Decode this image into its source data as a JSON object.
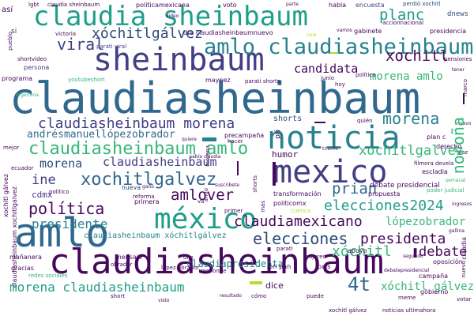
{
  "cloud": {
    "big": {
      "claudiasheinbaum": "claudiasheinbaum",
      "claudia_sheinbaum_top": "claudia sheinbaum",
      "sheinbaum": "sheinbaum",
      "amlo_claudiasheinbaum": "amlo claudiasheinbaum",
      "noticia": "noticia",
      "mexico": "mexico",
      "amlo": "amlo",
      "mexico_accent": "méxico",
      "claudiasheinbaum_quote": "claudiasheinbaum '",
      "claudiasheinbaum_morena": "claudiasheinbaum morena",
      "claudiasheinbaum_amlo": "claudiasheinbaum amlo",
      "xochitlgalvez_big": "xochitlgalvez"
    },
    "medium": {
      "xochitlgalvez_top": "xóchitlgálvez",
      "planc": "planc",
      "viral": "viral",
      "xochitl": "xochitl",
      "candidata": "candidata",
      "morena_amlo": "morena amlo",
      "morena": "morena",
      "andresmanuel": "andrésmanuellópezobrador",
      "claudiasheinbaum_mid": "claudiasheinbaum",
      "morena2": "morena",
      "ine": "ine",
      "politica": "política",
      "amlover": "amlover",
      "prian": "prian",
      "xochitlgalvez2": "xochitlgalvez",
      "norona": "noroña",
      "elecciones2024": "elecciones2024",
      "presidente": "presidente",
      "claudia": "claudia",
      "mexicano": "mexicano",
      "elecciones": "elecciones",
      "presidenta": "presidenta",
      "lopezobrador": "lópezobrador",
      "xochitl2": "xóchitl",
      "debate": "debate",
      "claudiapresidenta": "claudiapresidenta",
      "morena_claudiasheinbaum": "morena claudiasheinbaum",
      "fourt": "4t",
      "xochitl_galvez": "xóchitl gálvez",
      "claudiasheinbaum_xochitlgalvez": "claudiasheinbaum xóchitlgálvez",
      "cdmx": "cdmx",
      "shorts": "shorts",
      "humor": "humor",
      "dnews": "dnews",
      "nueva": "nueva"
    },
    "small": {
      "dra_claudia": "dra claudiasheinbaumnuevo",
      "politicamexicana": "politicamexicana",
      "habla": "habla",
      "encuesta": "encuesta",
      "voto": "voto",
      "gabinete": "gabinete",
      "presidencia": "presidencia",
      "parati_viral": "parati viral",
      "parati_shorts": "parati shorts",
      "maynez": "maynez",
      "persona": "persona",
      "programa": "programa",
      "precampana": "precampaña",
      "transformacion": "transformación",
      "politicomx": "politicomx",
      "debate_presidencial": "debate presidencial",
      "propuesta": "propuesta",
      "filmora": "filmora devela",
      "escladia": "escladia",
      "derecho": "derecho",
      "plan_c": "plan c",
      "manana": "mañanera",
      "gracias": "gracias",
      "redes_sociales": "redes sociales",
      "mujeres": "mujeres",
      "apoyo": "apoyo",
      "oposicion": "oposición",
      "campana": "campaña",
      "gobierno": "gobierno",
      "meme": "meme",
      "dice": "dice",
      "puede": "puede",
      "como": "cómo",
      "short": "short",
      "xochitl_galvez_small": "xochitl gálvez",
      "noticias_ultimahora": "noticias ultimahora",
      "mensaje": "mensaje",
      "politico": "político",
      "pais": "país",
      "parati": "parati",
      "youtubeshort": "youtubeshort",
      "cuenca": "cuenca",
      "hoy": "hoy",
      "junio": "junio",
      "quien": "quién",
      "vamos": "vamos",
      "victoria": "victoria",
      "pensiones": "pensiones",
      "lgbt": "lgbt",
      "asi": "así",
      "si": "si",
      "perdio": "perdió xochitl",
      "tener": "tener",
      "video": "video",
      "accionnacional": "accionnacional",
      "politica2": "política",
      "argentina": "argentina",
      "ecuador": "ecuador",
      "mejor": "mejor",
      "resultado": "resultado",
      "responde": "responde",
      "reforma": "reforma",
      "primera": "primera",
      "debatepresidencial": "debatepresidencial",
      "voz": "voz",
      "votar": "votar",
      "lopez_obrador": "lópez obrador",
      "obrador": "obrador",
      "pri_pan": "pri pan",
      "claudia_sheinbaum_small": "claudia sheinbaum",
      "dijo": "dijo",
      "hacer": "hacer",
      "primer": "primer",
      "va": "va",
      "ganar": "ganó",
      "suscribete": "suscribete",
      "sabia": "sabía claudia",
      "parte": "parte",
      "new": "new",
      "nuevo": "nuevo",
      "quiere": "quiere",
      "triunfo": "triunfo",
      "xochitl_galvez_v": "xochitl gálvez",
      "claudiasheinbaum_xochitlgalvez_v": "claudiasheinbaum xochitlgalvez",
      "amlo_v": "amlo",
      "pueblo": "pueblo",
      "morena_v": "morena",
      "pri_v": "pri",
      "claudia_v": "claudia",
      "nuevo_v": "nuevo",
      "shorts_v": "shorts",
      "marco_v": "marco",
      "mas_v": "más",
      "shortvideo": "shortvideo",
      "semanal": "semanal",
      "poder_judicial": "poder judicial",
      "ingresos": "ingresos",
      "gallina": "gallina",
      "segundo": "segundo",
      "visto": "visto"
    }
  },
  "palette": {
    "purple": "#46085c",
    "indigo": "#3b528b",
    "blue": "#31688e",
    "teal": "#26828e",
    "cyan": "#1f9e89",
    "green": "#35b779",
    "lime": "#6ece58",
    "yellow": "#b5de2b",
    "darkblue": "#2c4b7a",
    "navy": "#433e85"
  }
}
